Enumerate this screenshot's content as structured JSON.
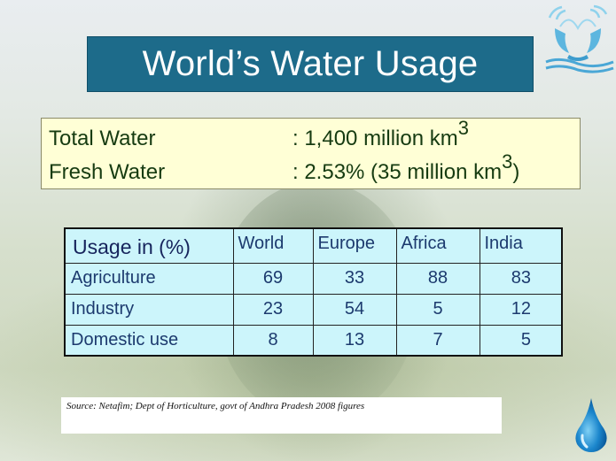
{
  "slide": {
    "title": "World’s Water Usage",
    "summary": [
      {
        "label": "Total Water",
        "value": ": 1,400 million km",
        "sup": "3",
        "suffix": ""
      },
      {
        "label": "Fresh Water",
        "value": ": 2.53%  (35 million km",
        "sup": "3",
        "suffix": ")"
      }
    ],
    "table": {
      "header": [
        "Usage in (%)",
        "World",
        "Europe",
        "Africa",
        "India"
      ],
      "rows": [
        [
          "Agriculture",
          "69",
          "33",
          "88",
          "83"
        ],
        [
          "Industry",
          "23",
          "54",
          "5",
          "12"
        ],
        [
          "Domestic use",
          "8",
          "13",
          "7",
          "5"
        ]
      ]
    },
    "source": "Source: Netafim; Dept of Horticulture, govt of Andhra Pradesh  2008 figures",
    "icons": {
      "logo": "hands-water-logo-icon",
      "drop": "water-drop-icon"
    },
    "colors": {
      "title_banner": "#1d6b8a",
      "info_box": "#ffffd6",
      "table_fill": "#ccf5fb",
      "info_text": "#163b11",
      "table_text": "#1c3a6e"
    }
  }
}
